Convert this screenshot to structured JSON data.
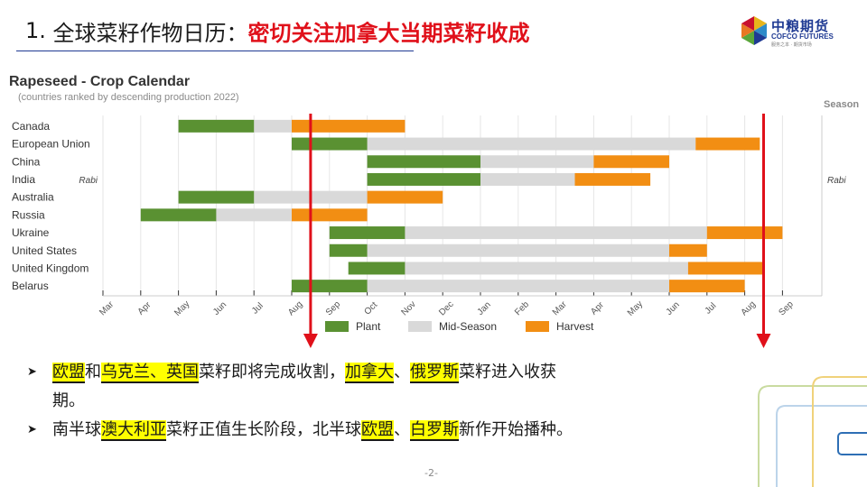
{
  "slide": {
    "title_number": "1. ",
    "title_black": "全球菜籽作物日历：",
    "title_red": "密切关注加拿大当期菜籽收成",
    "page": "-2-"
  },
  "logo": {
    "cn": "中粮期货",
    "en": "COFCO FUTURES",
    "sub": "服务之本 · 期货市场"
  },
  "chart_data": {
    "type": "gantt",
    "title": "Rapeseed - Crop Calendar",
    "subtitle": "(countries ranked by descending production 2022)",
    "season_label": "Season",
    "months": [
      "Mar",
      "Apr",
      "May",
      "Jun",
      "Jul",
      "Aug",
      "Sep",
      "Oct",
      "Nov",
      "Dec",
      "Jan",
      "Feb",
      "Mar",
      "Apr",
      "May",
      "Jun",
      "Jul",
      "Aug",
      "Sep"
    ],
    "legend": [
      {
        "name": "Plant",
        "color": "#5a9132"
      },
      {
        "name": "Mid-Season",
        "color": "#d9d9d9"
      },
      {
        "name": "Harvest",
        "color": "#f28e13"
      }
    ],
    "rows": [
      {
        "country": "Canada",
        "left_season": "",
        "right_season": "",
        "plant": [
          2.0,
          4.0
        ],
        "mid": [
          4.0,
          5.0
        ],
        "harvest": [
          5.0,
          8.0
        ]
      },
      {
        "country": "European Union",
        "left_season": "",
        "right_season": "",
        "plant": [
          5.0,
          7.0
        ],
        "mid": [
          7.0,
          15.7
        ],
        "harvest": [
          15.7,
          17.4
        ]
      },
      {
        "country": "China",
        "left_season": "",
        "right_season": "",
        "plant": [
          7.0,
          10.0
        ],
        "mid": [
          10.0,
          13.0
        ],
        "harvest": [
          13.0,
          15.0
        ]
      },
      {
        "country": "India",
        "left_season": "Rabi",
        "right_season": "Rabi",
        "plant": [
          7.0,
          10.0
        ],
        "mid": [
          10.0,
          12.5
        ],
        "harvest": [
          12.5,
          14.5
        ]
      },
      {
        "country": "Australia",
        "left_season": "",
        "right_season": "",
        "plant": [
          2.0,
          4.0
        ],
        "mid": [
          4.0,
          7.0
        ],
        "harvest": [
          7.0,
          9.0
        ]
      },
      {
        "country": "Russia",
        "left_season": "",
        "right_season": "",
        "plant": [
          1.0,
          3.0
        ],
        "mid": [
          3.0,
          5.0
        ],
        "harvest": [
          5.0,
          7.0
        ]
      },
      {
        "country": "Ukraine",
        "left_season": "",
        "right_season": "",
        "plant": [
          6.0,
          8.0
        ],
        "mid": [
          8.0,
          16.0
        ],
        "harvest": [
          16.0,
          18.0
        ]
      },
      {
        "country": "United States",
        "left_season": "",
        "right_season": "",
        "plant": [
          6.0,
          7.0
        ],
        "mid": [
          7.0,
          15.0
        ],
        "harvest": [
          15.0,
          16.0
        ]
      },
      {
        "country": "United Kingdom",
        "left_season": "",
        "right_season": "",
        "plant": [
          6.5,
          8.0
        ],
        "mid": [
          8.0,
          15.5
        ],
        "harvest": [
          15.5,
          17.5
        ]
      },
      {
        "country": "Belarus",
        "left_season": "",
        "right_season": "",
        "plant": [
          5.0,
          7.0
        ],
        "mid": [
          7.0,
          15.0
        ],
        "harvest": [
          15.0,
          17.0
        ]
      }
    ],
    "markers": [
      {
        "month_index": 5.5,
        "color": "#e0101a"
      },
      {
        "month_index": 17.5,
        "color": "#e0101a"
      }
    ]
  },
  "bullets": {
    "b1_parts": [
      {
        "t": "欧盟",
        "hl": true
      },
      {
        "t": "和",
        "hl": false
      },
      {
        "t": "乌克兰、英国",
        "hl": true
      },
      {
        "t": "菜籽即将完成收割，",
        "hl": false
      },
      {
        "t": "加拿大",
        "hl": true
      },
      {
        "t": "、",
        "hl": false
      },
      {
        "t": "俄罗斯",
        "hl": true
      },
      {
        "t": "菜籽进入收获",
        "hl": false
      }
    ],
    "b1_cont": "期。",
    "b2_parts": [
      {
        "t": "南半球",
        "hl": false
      },
      {
        "t": "澳大利亚",
        "hl": true
      },
      {
        "t": "菜籽正值生长阶段，北半球",
        "hl": false
      },
      {
        "t": "欧盟",
        "hl": true
      },
      {
        "t": "、",
        "hl": false
      },
      {
        "t": "白罗斯",
        "hl": true
      },
      {
        "t": "新作开始播种。",
        "hl": false
      }
    ]
  }
}
